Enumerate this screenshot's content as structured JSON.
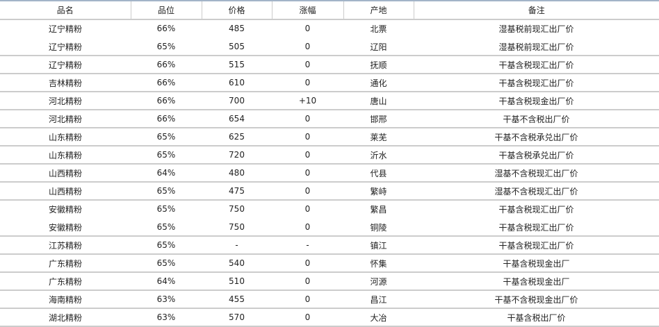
{
  "headers": [
    "品名",
    "品位",
    "价格",
    "涨幅",
    "产地",
    "备注"
  ],
  "rows": [
    [
      "辽宁精粉",
      "66%",
      "485",
      "0",
      "北票",
      "湿基税前现汇出厂价"
    ],
    [
      "辽宁精粉",
      "65%",
      "505",
      "0",
      "辽阳",
      "湿基税前现汇出厂价"
    ],
    [
      "辽宁精粉",
      "66%",
      "515",
      "0",
      "抚顺",
      "干基含税现汇出厂价"
    ],
    [
      "吉林精粉",
      "66%",
      "610",
      "0",
      "通化",
      "干基含税现汇出厂价"
    ],
    [
      "河北精粉",
      "66%",
      "700",
      "+10",
      "唐山",
      "干基含税现金出厂价"
    ],
    [
      "河北精粉",
      "66%",
      "654",
      "0",
      "邯邢",
      "干基不含税出厂价"
    ],
    [
      "山东精粉",
      "65%",
      "625",
      "0",
      "莱芜",
      "干基不含税承兑出厂价"
    ],
    [
      "山东精粉",
      "65%",
      "720",
      "0",
      "沂水",
      "干基含税承兑出厂价"
    ],
    [
      "山西精粉",
      "64%",
      "480",
      "0",
      "代县",
      "湿基不含税现汇出厂价"
    ],
    [
      "山西精粉",
      "65%",
      "475",
      "0",
      "繁峙",
      "湿基不含税现汇出厂价"
    ],
    [
      "安徽精粉",
      "65%",
      "750",
      "0",
      "繁昌",
      "干基含税现汇出厂价"
    ],
    [
      "安徽精粉",
      "65%",
      "750",
      "0",
      "铜陵",
      "干基含税现汇出厂价"
    ],
    [
      "江苏精粉",
      "65%",
      "-",
      "-",
      "镇江",
      "干基含税现汇出厂价"
    ],
    [
      "广东精粉",
      "65%",
      "540",
      "0",
      "怀集",
      "干基含税现金出厂"
    ],
    [
      "广东精粉",
      "64%",
      "510",
      "0",
      "河源",
      "干基含税现金出厂"
    ],
    [
      "海南精粉",
      "63%",
      "455",
      "0",
      "昌江",
      "干基不含税现金出厂价"
    ],
    [
      "湖北精粉",
      "63%",
      "570",
      "0",
      "大冶",
      "干基含税出厂价"
    ]
  ]
}
